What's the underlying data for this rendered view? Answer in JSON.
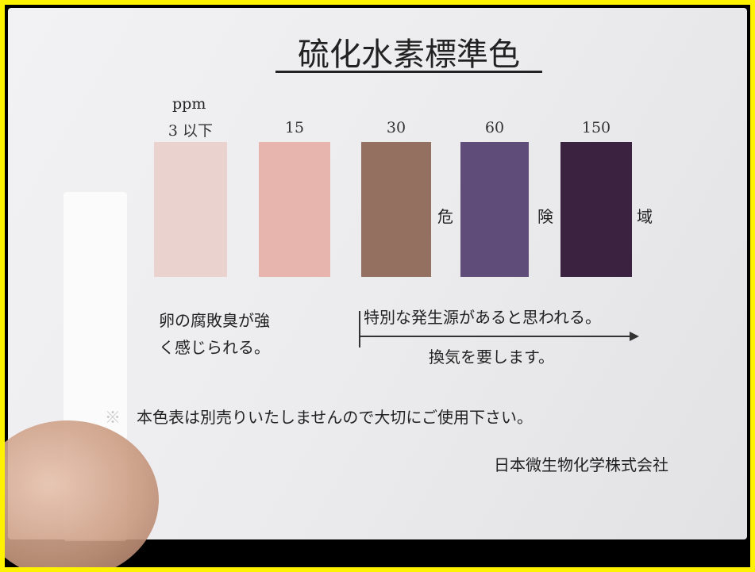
{
  "title": "硫化水素標準色",
  "unit": "ppm",
  "swatches": [
    {
      "label": "3 以下",
      "color": "#ead2cf"
    },
    {
      "label": "15",
      "color": "#e8b4ae"
    },
    {
      "label": "30",
      "color": "#93705f"
    },
    {
      "label": "60",
      "color": "#5f4c78"
    },
    {
      "label": "150",
      "color": "#3a2240"
    }
  ],
  "danger_zone": [
    "危",
    "険",
    "域"
  ],
  "notes": {
    "low": [
      "卵の腐敗臭が強",
      "く感じられる。"
    ],
    "high": "特別な発生源があると思われる。",
    "action": "換気を要します。"
  },
  "footnote": "※　本色表は別売りいたしませんので大切にご使用下さい。",
  "company": "日本微生物化学株式会社"
}
